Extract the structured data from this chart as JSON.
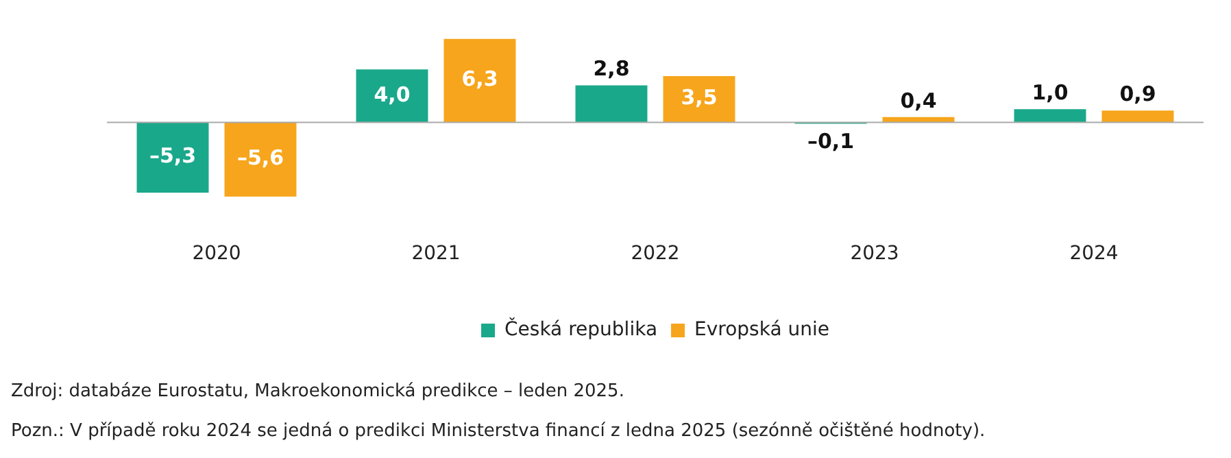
{
  "chart_data": {
    "type": "bar",
    "categories": [
      "2020",
      "2021",
      "2022",
      "2023",
      "2024"
    ],
    "series": [
      {
        "name": "Česká republika",
        "color": "#1aa88a",
        "values": [
          -5.3,
          4.0,
          2.8,
          -0.1,
          1.0
        ],
        "value_labels": [
          "–5,3",
          "4,0",
          "2,8",
          "–0,1",
          "1,0"
        ]
      },
      {
        "name": "Evropská unie",
        "color": "#f7a51c",
        "values": [
          -5.6,
          6.3,
          3.5,
          0.4,
          0.9
        ],
        "value_labels": [
          "–5,6",
          "6,3",
          "3,5",
          "0,4",
          "0,9"
        ]
      }
    ],
    "legend": "bottom",
    "grid": false,
    "annotations": [
      "Zdroj: databáze Eurostatu, Makroekonomická predikce – leden 2025.",
      "Pozn.: V případě roku 2024 se jedná o predikci Ministerstva financí z ledna 2025 (sezónně očištěné hodnoty)."
    ]
  }
}
